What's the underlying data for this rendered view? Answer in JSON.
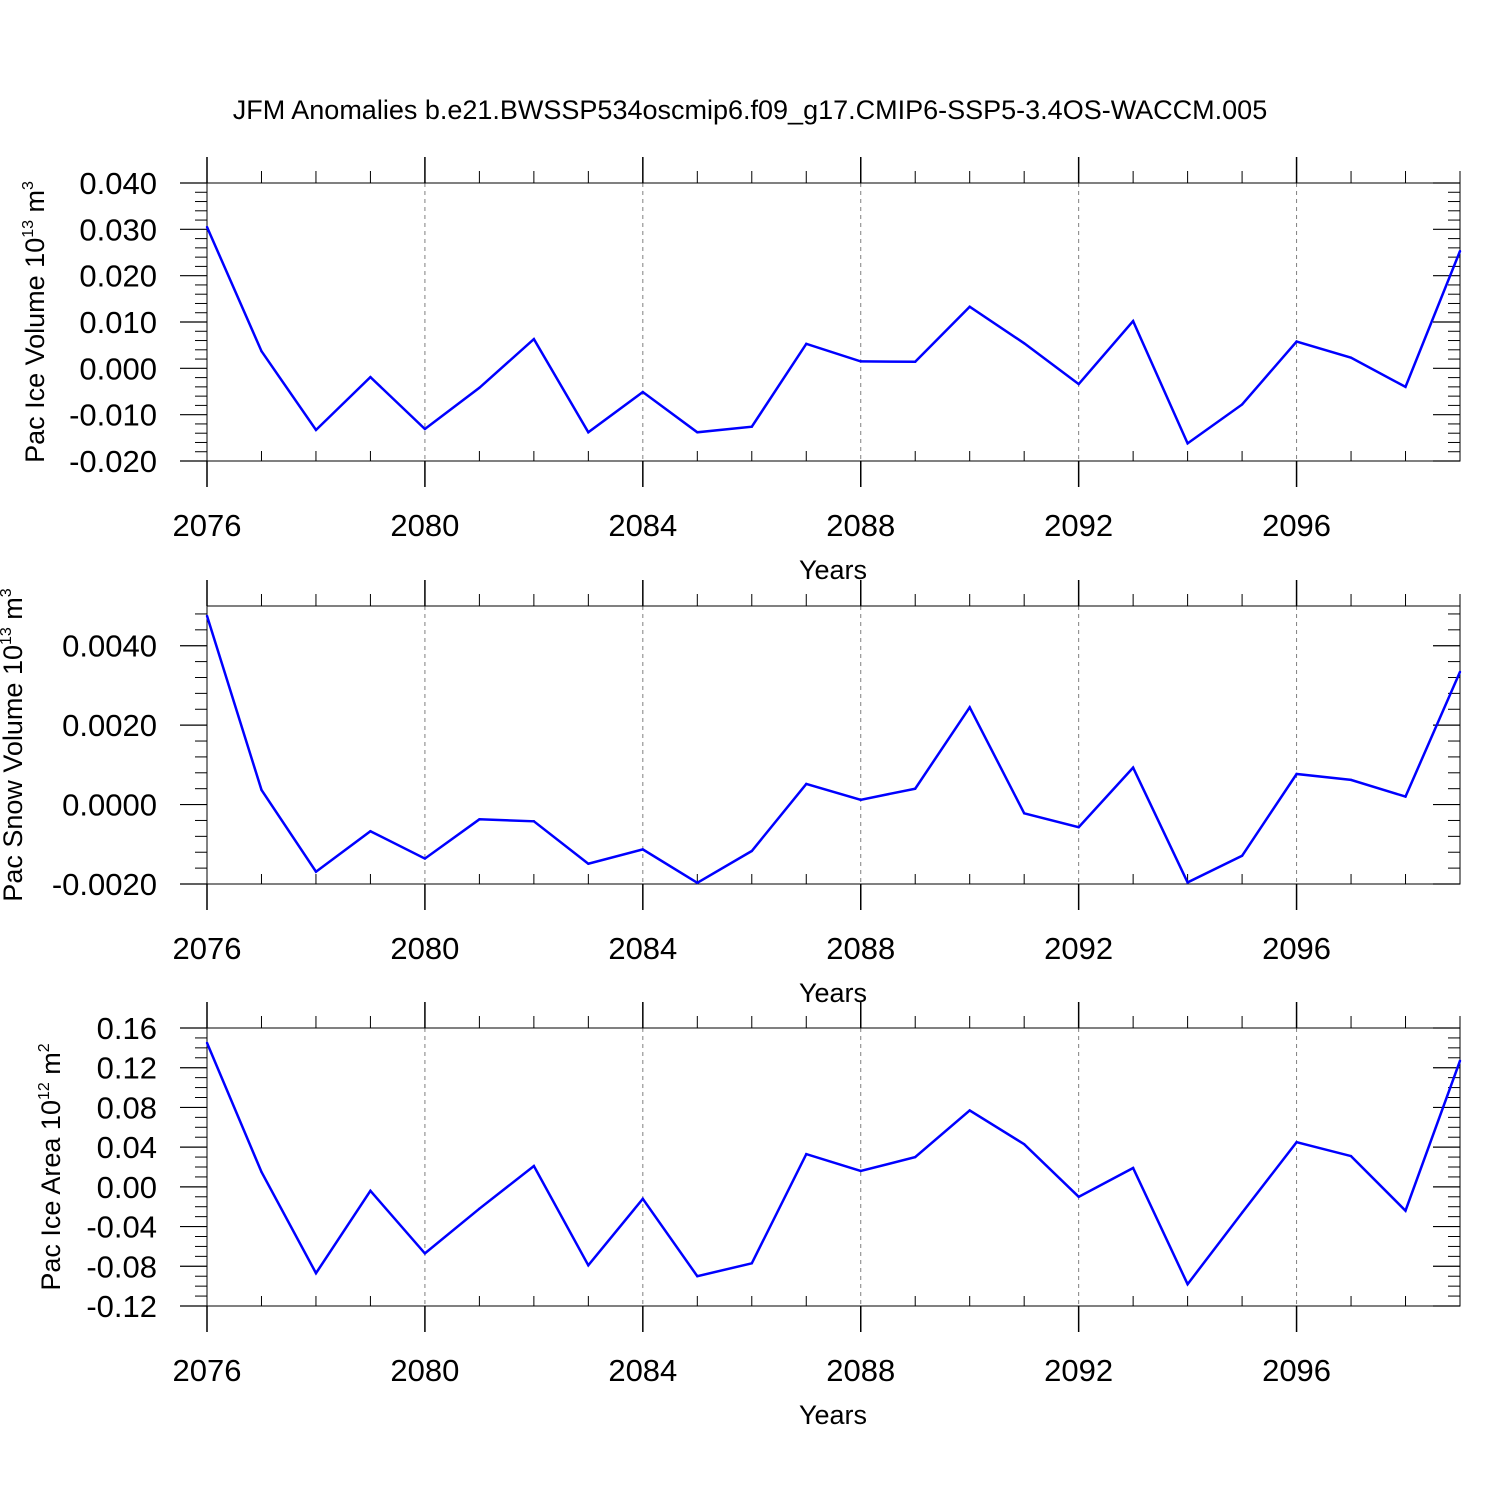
{
  "title": "JFM Anomalies b.e21.BWSSP534oscmip6.f09_g17.CMIP6-SSP5-3.4OS-WACCM.005",
  "colors": {
    "line": "#0000ff",
    "axis": "#000000",
    "grid": "#808080"
  },
  "chart_data": [
    {
      "type": "line",
      "xlabel": "Years",
      "ylabel": {
        "prefix": "Pac Ice Volume 10",
        "exp": "13",
        "unit": " m",
        "unit_exp": "3"
      },
      "xlim": [
        2076,
        2099
      ],
      "ylim": [
        -0.02,
        0.04
      ],
      "x_ticks": [
        "2076",
        "2080",
        "2084",
        "2088",
        "2092",
        "2096"
      ],
      "y_ticks": [
        "0.040",
        "0.030",
        "0.020",
        "0.010",
        "0.000",
        "-0.010",
        "-0.020"
      ],
      "grid": "vertical dashed at major x ticks",
      "series": [
        {
          "x": [
            2076,
            2077,
            2078,
            2079,
            2080,
            2081,
            2082,
            2083,
            2084,
            2085,
            2086,
            2087,
            2088,
            2089,
            2090,
            2091,
            2092,
            2093,
            2094,
            2095,
            2096,
            2097,
            2098,
            2099
          ],
          "values": [
            0.0305,
            0.0037,
            -0.0133,
            -0.0019,
            -0.0131,
            -0.0042,
            0.0063,
            -0.0138,
            -0.0051,
            -0.0138,
            -0.0126,
            0.0053,
            0.0015,
            0.0014,
            0.0133,
            0.0054,
            -0.0034,
            0.0102,
            -0.0162,
            -0.0078,
            0.0058,
            0.0023,
            -0.004,
            0.0253
          ]
        }
      ]
    },
    {
      "type": "line",
      "xlabel": "Years",
      "ylabel": {
        "prefix": "Pac Snow Volume 10",
        "exp": "13",
        "unit": " m",
        "unit_exp": "3"
      },
      "xlim": [
        2076,
        2099
      ],
      "ylim": [
        -0.002,
        0.005
      ],
      "x_ticks": [
        "2076",
        "2080",
        "2084",
        "2088",
        "2092",
        "2096"
      ],
      "y_ticks": [
        "0.0040",
        "0.0020",
        "0.0000",
        "-0.0020"
      ],
      "grid": "vertical dashed at major x ticks",
      "series": [
        {
          "x": [
            2076,
            2077,
            2078,
            2079,
            2080,
            2081,
            2082,
            2083,
            2084,
            2085,
            2086,
            2087,
            2088,
            2089,
            2090,
            2091,
            2092,
            2093,
            2094,
            2095,
            2096,
            2097,
            2098,
            2099
          ],
          "values": [
            0.00475,
            0.00037,
            -0.00169,
            -0.00067,
            -0.00136,
            -0.00037,
            -0.00042,
            -0.00149,
            -0.00113,
            -0.00197,
            -0.00117,
            0.00052,
            0.00012,
            0.0004,
            0.00245,
            -0.00022,
            -0.00057,
            0.00093,
            -0.00196,
            -0.00129,
            0.00077,
            0.00062,
            0.0002,
            0.00334
          ]
        }
      ]
    },
    {
      "type": "line",
      "xlabel": "Years",
      "ylabel": {
        "prefix": "Pac Ice Area 10",
        "exp": "12",
        "unit": " m",
        "unit_exp": "2"
      },
      "xlim": [
        2076,
        2099
      ],
      "ylim": [
        -0.12,
        0.16
      ],
      "x_ticks": [
        "2076",
        "2080",
        "2084",
        "2088",
        "2092",
        "2096"
      ],
      "y_ticks": [
        "0.16",
        "0.12",
        "0.08",
        "0.04",
        "0.00",
        "-0.04",
        "-0.08",
        "-0.12"
      ],
      "grid": "vertical dashed at major x ticks",
      "series": [
        {
          "x": [
            2076,
            2077,
            2078,
            2079,
            2080,
            2081,
            2082,
            2083,
            2084,
            2085,
            2086,
            2087,
            2088,
            2089,
            2090,
            2091,
            2092,
            2093,
            2094,
            2095,
            2096,
            2097,
            2098,
            2099
          ],
          "values": [
            0.145,
            0.015,
            -0.087,
            -0.004,
            -0.067,
            -0.022,
            0.021,
            -0.079,
            -0.012,
            -0.09,
            -0.077,
            0.033,
            0.016,
            0.03,
            0.077,
            0.043,
            -0.01,
            0.019,
            -0.098,
            -0.026,
            0.045,
            0.031,
            -0.024,
            0.127
          ]
        }
      ]
    }
  ]
}
